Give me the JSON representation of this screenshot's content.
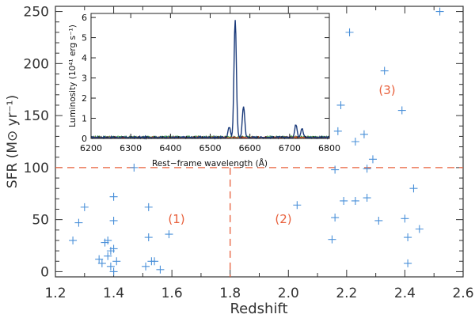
{
  "chart_data": {
    "type": "scatter",
    "xlabel": "Redshift",
    "ylabel": "SFR (M⊙ yr⁻¹)",
    "xlim": [
      1.2,
      2.6
    ],
    "ylim": [
      -5,
      255
    ],
    "x_ticks": [
      1.2,
      1.4,
      1.6,
      1.8,
      2.0,
      2.2,
      2.4,
      2.6
    ],
    "y_ticks": [
      0,
      50,
      100,
      150,
      200,
      250
    ],
    "x_tick_labels": [
      "1.2",
      "1.4",
      "1.6",
      "1.8",
      "2.0",
      "2.2",
      "2.4",
      "2.6"
    ],
    "y_tick_labels": [
      "0",
      "50",
      "100",
      "150",
      "200",
      "250"
    ],
    "marker_color": "#4a90d9",
    "threshold_color": "#e8603c",
    "thresholds": {
      "sfr": 100,
      "redshift": 1.8
    },
    "region_labels": [
      "(1)",
      "(2)",
      "(3)"
    ],
    "points": [
      {
        "x": 1.26,
        "y": 30
      },
      {
        "x": 1.28,
        "y": 47
      },
      {
        "x": 1.3,
        "y": 62
      },
      {
        "x": 1.35,
        "y": 12
      },
      {
        "x": 1.36,
        "y": 8
      },
      {
        "x": 1.37,
        "y": 28
      },
      {
        "x": 1.38,
        "y": 15
      },
      {
        "x": 1.38,
        "y": 30
      },
      {
        "x": 1.39,
        "y": 20
      },
      {
        "x": 1.39,
        "y": 5
      },
      {
        "x": 1.4,
        "y": 22
      },
      {
        "x": 1.4,
        "y": 0
      },
      {
        "x": 1.4,
        "y": 49
      },
      {
        "x": 1.4,
        "y": 72
      },
      {
        "x": 1.41,
        "y": 10
      },
      {
        "x": 1.47,
        "y": 100
      },
      {
        "x": 1.51,
        "y": 5
      },
      {
        "x": 1.52,
        "y": 33
      },
      {
        "x": 1.52,
        "y": 62
      },
      {
        "x": 1.53,
        "y": 10
      },
      {
        "x": 1.54,
        "y": 10
      },
      {
        "x": 1.56,
        "y": 2
      },
      {
        "x": 1.59,
        "y": 36
      },
      {
        "x": 2.03,
        "y": 64
      },
      {
        "x": 2.15,
        "y": 31
      },
      {
        "x": 2.16,
        "y": 52
      },
      {
        "x": 2.16,
        "y": 98
      },
      {
        "x": 2.17,
        "y": 135
      },
      {
        "x": 2.18,
        "y": 160
      },
      {
        "x": 2.19,
        "y": 68
      },
      {
        "x": 2.21,
        "y": 230
      },
      {
        "x": 2.23,
        "y": 68
      },
      {
        "x": 2.23,
        "y": 125
      },
      {
        "x": 2.26,
        "y": 132
      },
      {
        "x": 2.27,
        "y": 99
      },
      {
        "x": 2.27,
        "y": 71
      },
      {
        "x": 2.29,
        "y": 108
      },
      {
        "x": 2.31,
        "y": 49
      },
      {
        "x": 2.33,
        "y": 193
      },
      {
        "x": 2.39,
        "y": 155
      },
      {
        "x": 2.4,
        "y": 51
      },
      {
        "x": 2.41,
        "y": 33
      },
      {
        "x": 2.41,
        "y": 8
      },
      {
        "x": 2.43,
        "y": 80
      },
      {
        "x": 2.45,
        "y": 41
      },
      {
        "x": 2.52,
        "y": 250
      }
    ],
    "inset": {
      "type": "line",
      "xlabel": "Rest−frame wavelength (Å)",
      "ylabel": "Luminosity (10⁴¹ erg s⁻¹)",
      "xlim": [
        6200,
        6800
      ],
      "ylim": [
        0,
        6.2
      ],
      "x_ticks": [
        6200,
        6300,
        6400,
        6500,
        6600,
        6700,
        6800
      ],
      "y_ticks": [
        0,
        1,
        2,
        3,
        4,
        5,
        6
      ],
      "x_tick_labels": [
        "6200",
        "6300",
        "6400",
        "6500",
        "6600",
        "6700",
        "6800"
      ],
      "y_tick_labels": [
        "0",
        "1",
        "2",
        "3",
        "4",
        "5",
        "6"
      ],
      "series": [
        {
          "name": "spectrum",
          "color": "#1a3a7a",
          "baseline": 0.05,
          "lines": [
            {
              "center": 6548,
              "peak": 0.5,
              "sigma": 3
            },
            {
              "center": 6563,
              "peak": 5.85,
              "sigma": 3
            },
            {
              "center": 6584,
              "peak": 1.55,
              "sigma": 3
            },
            {
              "center": 6716,
              "peak": 0.65,
              "sigma": 3
            },
            {
              "center": 6731,
              "peak": 0.45,
              "sigma": 3
            }
          ]
        },
        {
          "name": "noise-red",
          "color": "#d0342c",
          "baseline": 0.05
        },
        {
          "name": "noise-green",
          "color": "#3a9a3a",
          "baseline": 0.08
        },
        {
          "name": "noise-yellow",
          "color": "#d8c020",
          "baseline": 0.02
        }
      ]
    }
  }
}
